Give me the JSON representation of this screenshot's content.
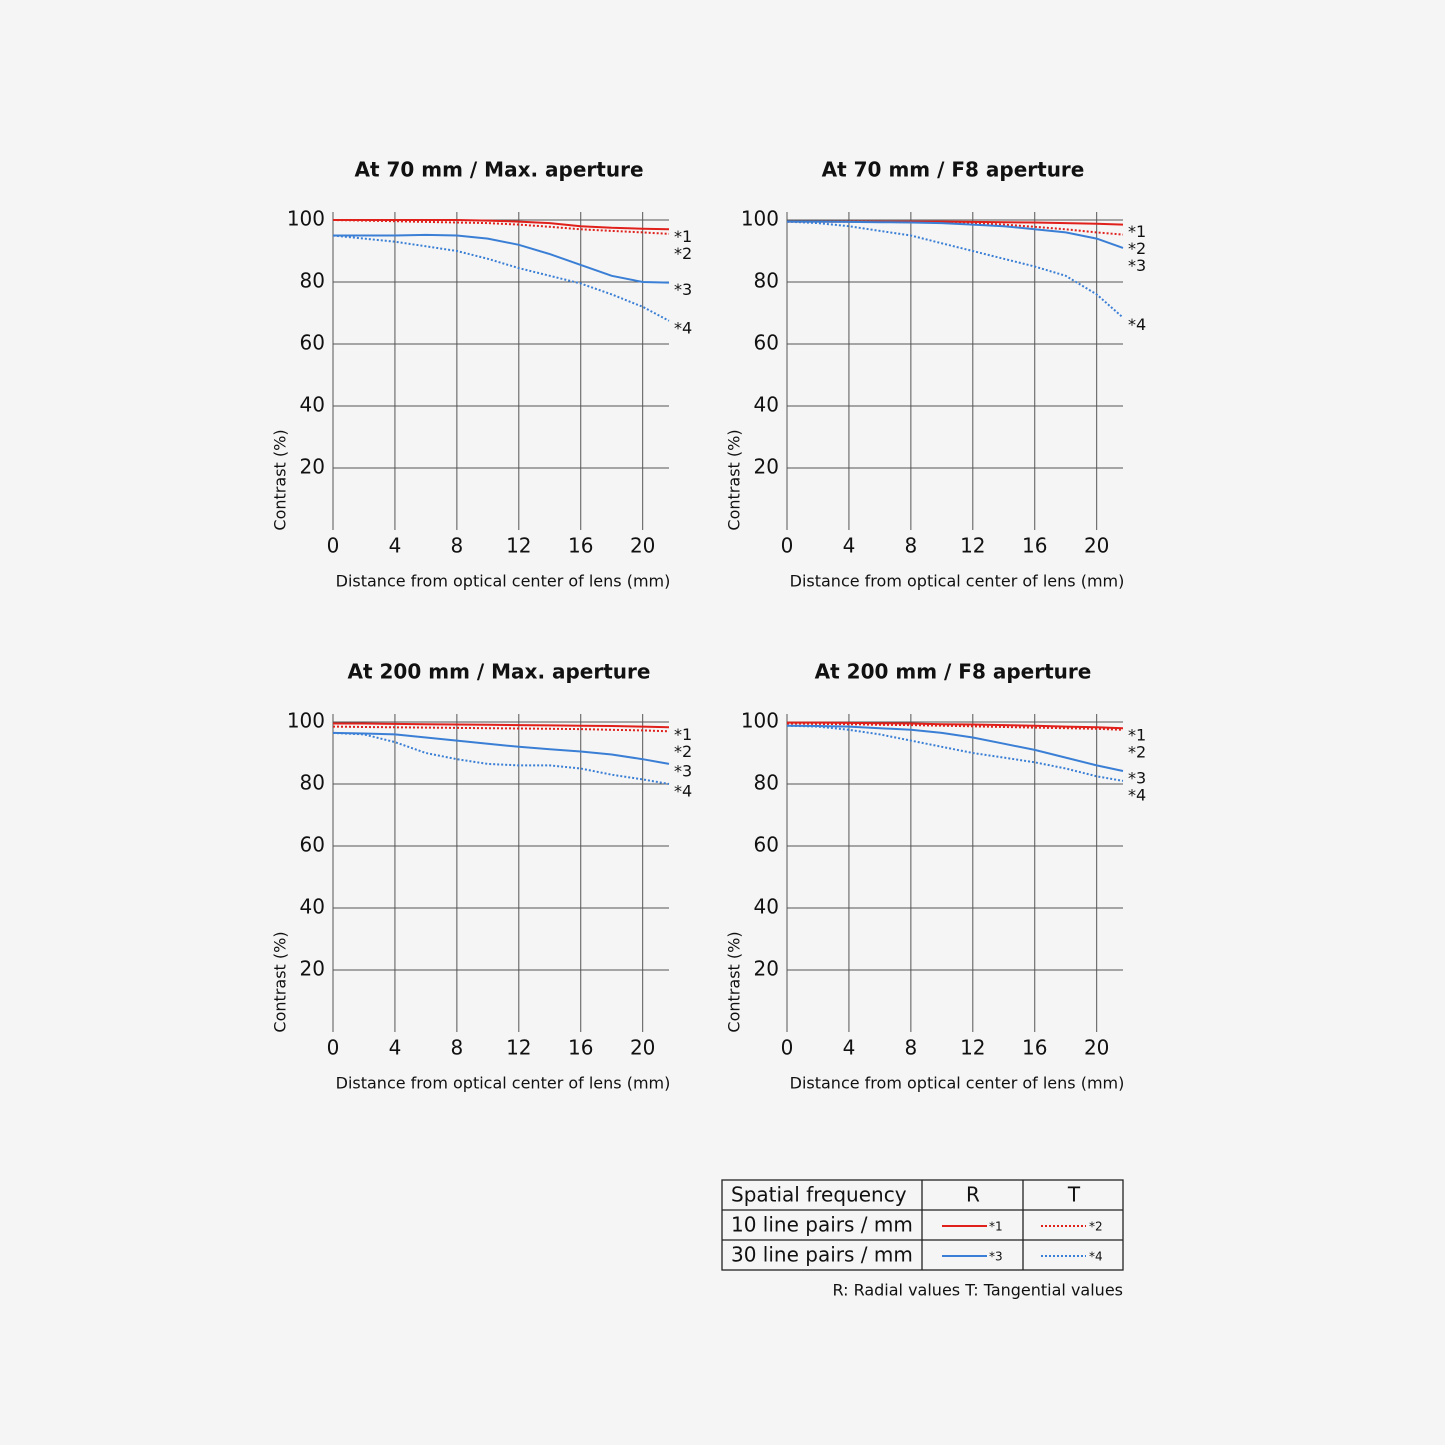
{
  "chart_data": [
    {
      "type": "line",
      "title": "At 70 mm / Max. aperture",
      "x_label": "Distance from optical center of lens (mm)",
      "y_label": "Contrast (%)",
      "x": [
        0,
        2,
        4,
        6,
        8,
        10,
        12,
        14,
        16,
        18,
        20,
        21.7
      ],
      "xlim": [
        0,
        21.7
      ],
      "ylim": [
        0,
        100
      ],
      "xticks": [
        0,
        4,
        8,
        12,
        16,
        20
      ],
      "yticks": [
        20,
        40,
        60,
        80,
        100
      ],
      "grid": true,
      "series": [
        {
          "name": "*1",
          "color": "#e0201b",
          "dash": "solid",
          "values": [
            100,
            100,
            100,
            100,
            100,
            99.8,
            99.5,
            99,
            98,
            97.5,
            97.2,
            97
          ]
        },
        {
          "name": "*2",
          "color": "#e0201b",
          "dash": "dotted",
          "values": [
            100,
            99.8,
            99.6,
            99.4,
            99.2,
            99,
            98.5,
            97.8,
            97,
            96.5,
            96,
            95.5
          ]
        },
        {
          "name": "*3",
          "color": "#3a7fd5",
          "dash": "solid",
          "values": [
            95,
            95,
            95,
            95.2,
            95,
            94,
            92,
            89,
            85.5,
            82,
            80,
            79.8
          ]
        },
        {
          "name": "*4",
          "color": "#3a7fd5",
          "dash": "dotted",
          "values": [
            95,
            94,
            93,
            91.5,
            90,
            87.5,
            84.5,
            82,
            79.5,
            76,
            72,
            67.5
          ]
        }
      ]
    },
    {
      "type": "line",
      "title": "At 70 mm / F8 aperture",
      "x_label": "Distance from optical center of lens (mm)",
      "y_label": "Contrast (%)",
      "x": [
        0,
        2,
        4,
        6,
        8,
        10,
        12,
        14,
        16,
        18,
        20,
        21.7
      ],
      "xlim": [
        0,
        21.7
      ],
      "ylim": [
        0,
        100
      ],
      "xticks": [
        0,
        4,
        8,
        12,
        16,
        20
      ],
      "yticks": [
        20,
        40,
        60,
        80,
        100
      ],
      "grid": true,
      "series": [
        {
          "name": "*1",
          "color": "#e0201b",
          "dash": "solid",
          "values": [
            99.5,
            99.5,
            99.5,
            99.5,
            99.5,
            99.5,
            99.4,
            99.3,
            99.2,
            99,
            98.8,
            98.5
          ]
        },
        {
          "name": "*2",
          "color": "#e0201b",
          "dash": "dotted",
          "values": [
            99.5,
            99.5,
            99.5,
            99.4,
            99.3,
            99.2,
            99,
            98.5,
            97.8,
            97,
            96,
            95.3
          ]
        },
        {
          "name": "*3",
          "color": "#3a7fd5",
          "dash": "solid",
          "values": [
            99.5,
            99.5,
            99.4,
            99.3,
            99.2,
            99,
            98.5,
            98,
            97,
            96,
            94,
            91
          ]
        },
        {
          "name": "*4",
          "color": "#3a7fd5",
          "dash": "dotted",
          "values": [
            99.5,
            99,
            98,
            96.5,
            95,
            92.5,
            90,
            87.5,
            85,
            82,
            76,
            68.5
          ]
        }
      ]
    },
    {
      "type": "line",
      "title": "At 200 mm / Max. aperture",
      "x_label": "Distance from optical center of lens (mm)",
      "y_label": "Contrast (%)",
      "x": [
        0,
        2,
        4,
        6,
        8,
        10,
        12,
        14,
        16,
        18,
        20,
        21.7
      ],
      "xlim": [
        0,
        21.7
      ],
      "ylim": [
        0,
        100
      ],
      "xticks": [
        0,
        4,
        8,
        12,
        16,
        20
      ],
      "yticks": [
        20,
        40,
        60,
        80,
        100
      ],
      "grid": true,
      "series": [
        {
          "name": "*1",
          "color": "#e0201b",
          "dash": "solid",
          "values": [
            99.5,
            99.5,
            99.4,
            99.3,
            99.2,
            99.1,
            99,
            98.9,
            98.8,
            98.7,
            98.5,
            98.3
          ]
        },
        {
          "name": "*2",
          "color": "#e0201b",
          "dash": "dotted",
          "values": [
            98.5,
            98.4,
            98.3,
            98.2,
            98.1,
            98,
            97.9,
            97.8,
            97.7,
            97.5,
            97.3,
            97
          ]
        },
        {
          "name": "*3",
          "color": "#3a7fd5",
          "dash": "solid",
          "values": [
            96.5,
            96.3,
            96,
            95,
            94,
            93,
            92,
            91.2,
            90.5,
            89.5,
            88,
            86.5
          ]
        },
        {
          "name": "*4",
          "color": "#3a7fd5",
          "dash": "dotted",
          "values": [
            96.5,
            96,
            93.5,
            90,
            88,
            86.5,
            86,
            86,
            85,
            83,
            81.5,
            80
          ]
        }
      ]
    },
    {
      "type": "line",
      "title": "At 200 mm / F8 aperture",
      "x_label": "Distance from optical center of lens (mm)",
      "y_label": "Contrast (%)",
      "x": [
        0,
        2,
        4,
        6,
        8,
        10,
        12,
        14,
        16,
        18,
        20,
        21.7
      ],
      "xlim": [
        0,
        21.7
      ],
      "ylim": [
        0,
        100
      ],
      "xticks": [
        0,
        4,
        8,
        12,
        16,
        20
      ],
      "yticks": [
        20,
        40,
        60,
        80,
        100
      ],
      "grid": true,
      "series": [
        {
          "name": "*1",
          "color": "#e0201b",
          "dash": "solid",
          "values": [
            99.8,
            99.8,
            99.7,
            99.6,
            99.5,
            99.3,
            99.2,
            99,
            98.8,
            98.5,
            98.3,
            98
          ]
        },
        {
          "name": "*2",
          "color": "#e0201b",
          "dash": "dotted",
          "values": [
            99.5,
            99.4,
            99.3,
            99.1,
            99,
            98.8,
            98.6,
            98.4,
            98.2,
            98,
            97.8,
            97.5
          ]
        },
        {
          "name": "*3",
          "color": "#3a7fd5",
          "dash": "solid",
          "values": [
            98.8,
            98.7,
            98.5,
            98,
            97.5,
            96.5,
            95,
            93,
            91,
            88.5,
            86,
            84.2
          ]
        },
        {
          "name": "*4",
          "color": "#3a7fd5",
          "dash": "dotted",
          "values": [
            98.8,
            98.5,
            97.5,
            96,
            94,
            92,
            90,
            88.5,
            87,
            85,
            82.5,
            81
          ]
        }
      ]
    }
  ],
  "legend_table": {
    "header": [
      "Spatial frequency",
      "R",
      "T"
    ],
    "rows": [
      [
        "10 line pairs / mm",
        "*1",
        "*2"
      ],
      [
        "30 line pairs / mm",
        "*3",
        "*4"
      ]
    ],
    "note": "R: Radial values  T: Tangential values"
  }
}
